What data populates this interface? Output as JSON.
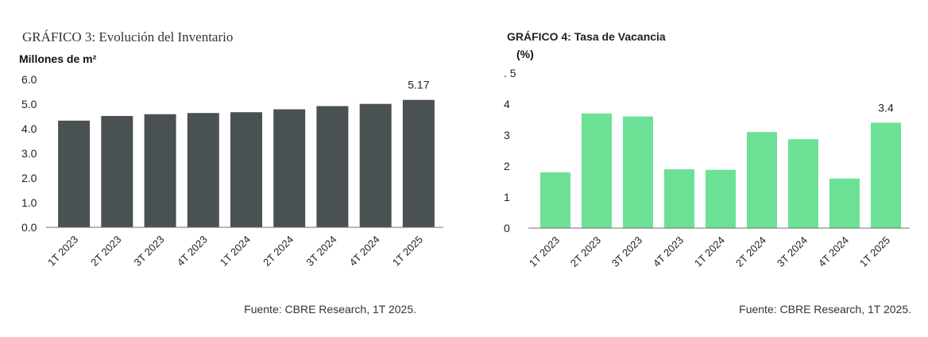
{
  "chart_data": [
    {
      "type": "bar",
      "title": "GRÁFICO 3: Evolución del Inventario",
      "unit_label": "Millones de m²",
      "source": "Fuente: CBRE Research, 1T 2025.",
      "categories": [
        "1T 2023",
        "2T 2023",
        "3T 2023",
        "4T 2023",
        "1T 2024",
        "2T 2024",
        "3T 2024",
        "4T 2024",
        "1T 2025"
      ],
      "values": [
        4.33,
        4.52,
        4.59,
        4.64,
        4.67,
        4.79,
        4.92,
        5.01,
        5.17
      ],
      "data_labels": [
        "",
        "",
        "",
        "",
        "",
        "",
        "",
        "",
        "5.17"
      ],
      "yticks": [
        "0.0",
        "1.0",
        "2.0",
        "3.0",
        "4.0",
        "5.0",
        "6.0"
      ],
      "ylim": [
        0,
        6
      ],
      "grid": false,
      "bar_color": "#4a5153"
    },
    {
      "type": "bar",
      "title": "GRÁFICO 4: Tasa de Vacancia",
      "unit_label": "(%)",
      "source": "Fuente: CBRE Research, 1T 2025.",
      "categories": [
        "1T 2023",
        "2T 2023",
        "3T 2023",
        "4T 2023",
        "1T 2024",
        "2T 2024",
        "3T 2024",
        "4T 2024",
        "1T 2025"
      ],
      "values": [
        1.8,
        3.7,
        3.6,
        1.9,
        1.88,
        3.1,
        2.87,
        1.6,
        3.4
      ],
      "data_labels": [
        "",
        "",
        "",
        "",
        "",
        "",
        "",
        "",
        "3.4"
      ],
      "yticks": [
        "0",
        "1",
        "2",
        "3",
        "4",
        ". 5"
      ],
      "ylim": [
        0,
        5
      ],
      "grid": false,
      "bar_color": "#6ce196"
    }
  ]
}
